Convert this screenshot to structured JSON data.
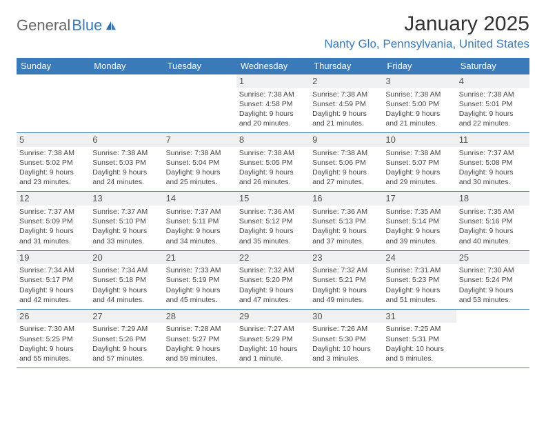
{
  "logo": {
    "general": "General",
    "blue": "Blue"
  },
  "title": "January 2025",
  "location": "Nanty Glo, Pennsylvania, United States",
  "header_bg": "#3a7ab8",
  "day_names": [
    "Sunday",
    "Monday",
    "Tuesday",
    "Wednesday",
    "Thursday",
    "Friday",
    "Saturday"
  ],
  "weeks": [
    [
      null,
      null,
      null,
      {
        "n": "1",
        "sr": "7:38 AM",
        "ss": "4:58 PM",
        "dl": "9 hours and 20 minutes."
      },
      {
        "n": "2",
        "sr": "7:38 AM",
        "ss": "4:59 PM",
        "dl": "9 hours and 21 minutes."
      },
      {
        "n": "3",
        "sr": "7:38 AM",
        "ss": "5:00 PM",
        "dl": "9 hours and 21 minutes."
      },
      {
        "n": "4",
        "sr": "7:38 AM",
        "ss": "5:01 PM",
        "dl": "9 hours and 22 minutes."
      }
    ],
    [
      {
        "n": "5",
        "sr": "7:38 AM",
        "ss": "5:02 PM",
        "dl": "9 hours and 23 minutes."
      },
      {
        "n": "6",
        "sr": "7:38 AM",
        "ss": "5:03 PM",
        "dl": "9 hours and 24 minutes."
      },
      {
        "n": "7",
        "sr": "7:38 AM",
        "ss": "5:04 PM",
        "dl": "9 hours and 25 minutes."
      },
      {
        "n": "8",
        "sr": "7:38 AM",
        "ss": "5:05 PM",
        "dl": "9 hours and 26 minutes."
      },
      {
        "n": "9",
        "sr": "7:38 AM",
        "ss": "5:06 PM",
        "dl": "9 hours and 27 minutes."
      },
      {
        "n": "10",
        "sr": "7:38 AM",
        "ss": "5:07 PM",
        "dl": "9 hours and 29 minutes."
      },
      {
        "n": "11",
        "sr": "7:37 AM",
        "ss": "5:08 PM",
        "dl": "9 hours and 30 minutes."
      }
    ],
    [
      {
        "n": "12",
        "sr": "7:37 AM",
        "ss": "5:09 PM",
        "dl": "9 hours and 31 minutes."
      },
      {
        "n": "13",
        "sr": "7:37 AM",
        "ss": "5:10 PM",
        "dl": "9 hours and 33 minutes."
      },
      {
        "n": "14",
        "sr": "7:37 AM",
        "ss": "5:11 PM",
        "dl": "9 hours and 34 minutes."
      },
      {
        "n": "15",
        "sr": "7:36 AM",
        "ss": "5:12 PM",
        "dl": "9 hours and 35 minutes."
      },
      {
        "n": "16",
        "sr": "7:36 AM",
        "ss": "5:13 PM",
        "dl": "9 hours and 37 minutes."
      },
      {
        "n": "17",
        "sr": "7:35 AM",
        "ss": "5:14 PM",
        "dl": "9 hours and 39 minutes."
      },
      {
        "n": "18",
        "sr": "7:35 AM",
        "ss": "5:16 PM",
        "dl": "9 hours and 40 minutes."
      }
    ],
    [
      {
        "n": "19",
        "sr": "7:34 AM",
        "ss": "5:17 PM",
        "dl": "9 hours and 42 minutes."
      },
      {
        "n": "20",
        "sr": "7:34 AM",
        "ss": "5:18 PM",
        "dl": "9 hours and 44 minutes."
      },
      {
        "n": "21",
        "sr": "7:33 AM",
        "ss": "5:19 PM",
        "dl": "9 hours and 45 minutes."
      },
      {
        "n": "22",
        "sr": "7:32 AM",
        "ss": "5:20 PM",
        "dl": "9 hours and 47 minutes."
      },
      {
        "n": "23",
        "sr": "7:32 AM",
        "ss": "5:21 PM",
        "dl": "9 hours and 49 minutes."
      },
      {
        "n": "24",
        "sr": "7:31 AM",
        "ss": "5:23 PM",
        "dl": "9 hours and 51 minutes."
      },
      {
        "n": "25",
        "sr": "7:30 AM",
        "ss": "5:24 PM",
        "dl": "9 hours and 53 minutes."
      }
    ],
    [
      {
        "n": "26",
        "sr": "7:30 AM",
        "ss": "5:25 PM",
        "dl": "9 hours and 55 minutes."
      },
      {
        "n": "27",
        "sr": "7:29 AM",
        "ss": "5:26 PM",
        "dl": "9 hours and 57 minutes."
      },
      {
        "n": "28",
        "sr": "7:28 AM",
        "ss": "5:27 PM",
        "dl": "9 hours and 59 minutes."
      },
      {
        "n": "29",
        "sr": "7:27 AM",
        "ss": "5:29 PM",
        "dl": "10 hours and 1 minute."
      },
      {
        "n": "30",
        "sr": "7:26 AM",
        "ss": "5:30 PM",
        "dl": "10 hours and 3 minutes."
      },
      {
        "n": "31",
        "sr": "7:25 AM",
        "ss": "5:31 PM",
        "dl": "10 hours and 5 minutes."
      },
      null
    ]
  ]
}
